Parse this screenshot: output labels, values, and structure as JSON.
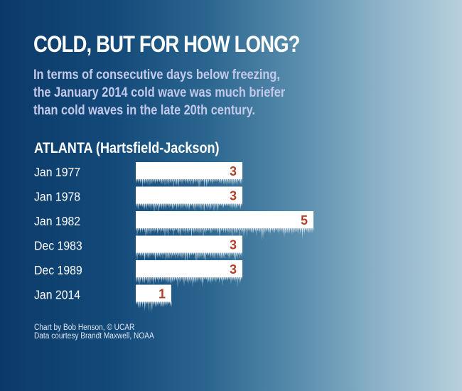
{
  "header": {
    "title": "COLD, BUT FOR HOW LONG?",
    "subtitle_lines": [
      "In terms of consecutive days below freezing,",
      "the January 2014 cold wave was much briefer",
      "than cold waves in the late 20th century."
    ]
  },
  "chart_data": {
    "type": "bar",
    "orientation": "horizontal",
    "title": "ATLANTA (Hartsfield-Jackson)",
    "categories": [
      "Jan 1977",
      "Jan 1978",
      "Jan 1982",
      "Dec 1983",
      "Dec 1989",
      "Jan 2014"
    ],
    "values": [
      3,
      3,
      5,
      3,
      3,
      1
    ],
    "value_unit": "consecutive days below freezing",
    "xlabel": "",
    "ylabel": "",
    "xlim": [
      0,
      5
    ],
    "grid": false,
    "legend": "none",
    "colors": {
      "bar": "#ffffff",
      "value_label": "#b3402a",
      "category_label": "#ffffff"
    }
  },
  "footer": {
    "credit": "Chart by Bob Henson, © UCAR",
    "source": "Data courtesy Brandt Maxwell, NOAA"
  }
}
